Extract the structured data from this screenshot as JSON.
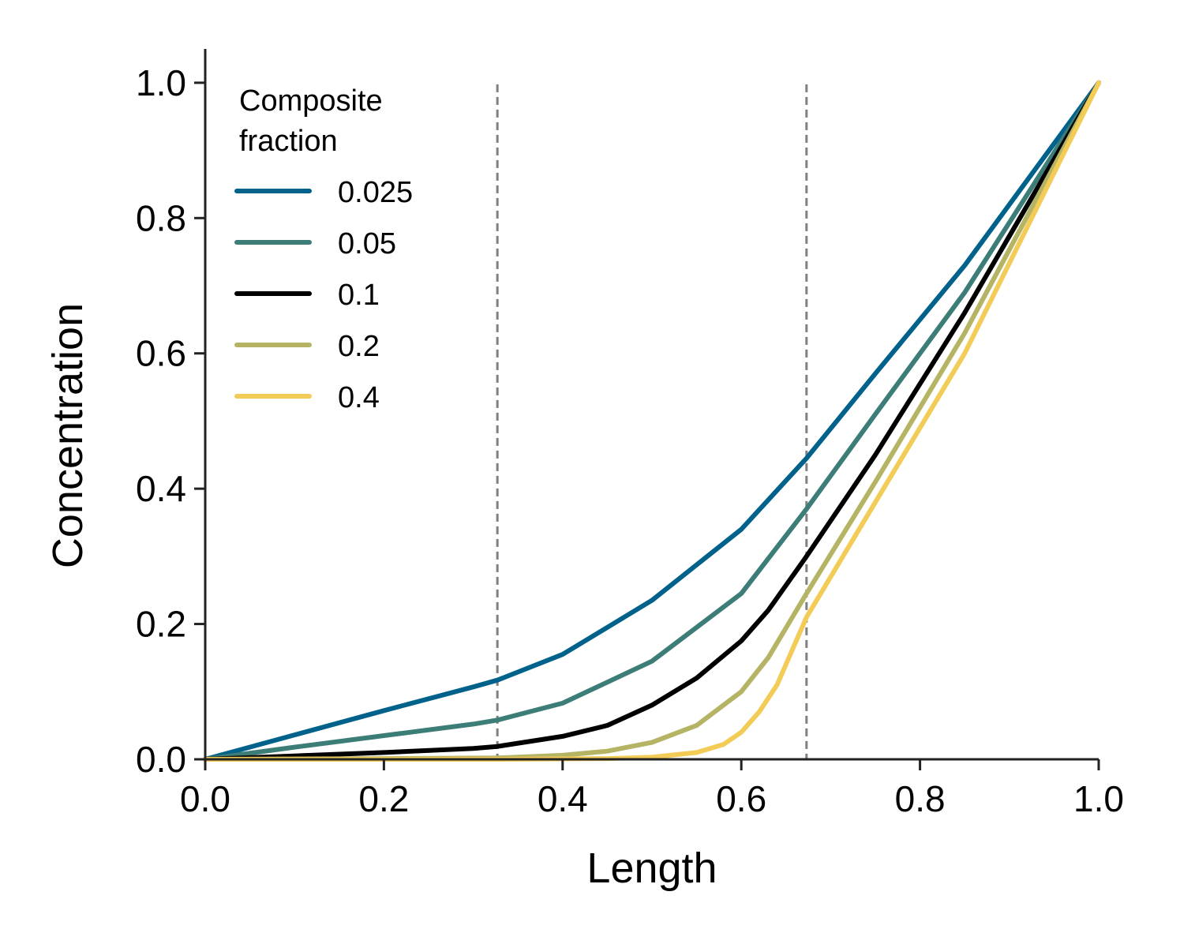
{
  "chart_data": {
    "type": "line",
    "xlabel": "Length",
    "ylabel": "Concentration",
    "xlim": [
      0.0,
      1.0
    ],
    "ylim": [
      0.0,
      1.05
    ],
    "xticks": [
      "0.0",
      "0.2",
      "0.4",
      "0.6",
      "0.8",
      "1.0"
    ],
    "yticks": [
      "0.0",
      "0.2",
      "0.4",
      "0.6",
      "0.8",
      "1.0"
    ],
    "grid": false,
    "legend": {
      "title_line1": "Composite",
      "title_line2": "fraction",
      "placement": "top-left"
    },
    "vlines": [
      {
        "x": 0.327,
        "style": "dashed",
        "color": "#808080"
      },
      {
        "x": 0.673,
        "style": "dashed",
        "color": "#808080"
      }
    ],
    "series": [
      {
        "name": "0.025",
        "color": "#00628B",
        "x": [
          0.0,
          0.1,
          0.2,
          0.3,
          0.327,
          0.4,
          0.5,
          0.6,
          0.673,
          0.75,
          0.85,
          1.0
        ],
        "y": [
          0.0,
          0.036,
          0.072,
          0.107,
          0.117,
          0.155,
          0.235,
          0.34,
          0.445,
          0.57,
          0.73,
          1.0
        ]
      },
      {
        "name": "0.05",
        "color": "#3D7D78",
        "x": [
          0.0,
          0.1,
          0.2,
          0.3,
          0.327,
          0.4,
          0.5,
          0.6,
          0.673,
          0.75,
          0.85,
          1.0
        ],
        "y": [
          0.0,
          0.018,
          0.035,
          0.052,
          0.058,
          0.083,
          0.145,
          0.245,
          0.37,
          0.51,
          0.69,
          1.0
        ]
      },
      {
        "name": "0.1",
        "color": "#000000",
        "x": [
          0.0,
          0.1,
          0.2,
          0.3,
          0.327,
          0.4,
          0.45,
          0.5,
          0.55,
          0.6,
          0.63,
          0.673,
          0.75,
          0.85,
          1.0
        ],
        "y": [
          0.0,
          0.005,
          0.01,
          0.016,
          0.019,
          0.034,
          0.05,
          0.08,
          0.12,
          0.175,
          0.22,
          0.3,
          0.45,
          0.66,
          1.0
        ]
      },
      {
        "name": "0.2",
        "color": "#B5B464",
        "x": [
          0.0,
          0.2,
          0.327,
          0.4,
          0.45,
          0.5,
          0.55,
          0.6,
          0.63,
          0.673,
          0.75,
          0.85,
          1.0
        ],
        "y": [
          0.0,
          0.001,
          0.002,
          0.006,
          0.012,
          0.025,
          0.05,
          0.1,
          0.15,
          0.245,
          0.41,
          0.63,
          1.0
        ]
      },
      {
        "name": "0.4",
        "color": "#F2CC57",
        "x": [
          0.0,
          0.327,
          0.45,
          0.5,
          0.55,
          0.58,
          0.6,
          0.62,
          0.64,
          0.673,
          0.75,
          0.85,
          1.0
        ],
        "y": [
          0.0,
          0.0,
          0.001,
          0.003,
          0.01,
          0.022,
          0.04,
          0.07,
          0.11,
          0.21,
          0.38,
          0.6,
          1.0
        ]
      }
    ]
  }
}
